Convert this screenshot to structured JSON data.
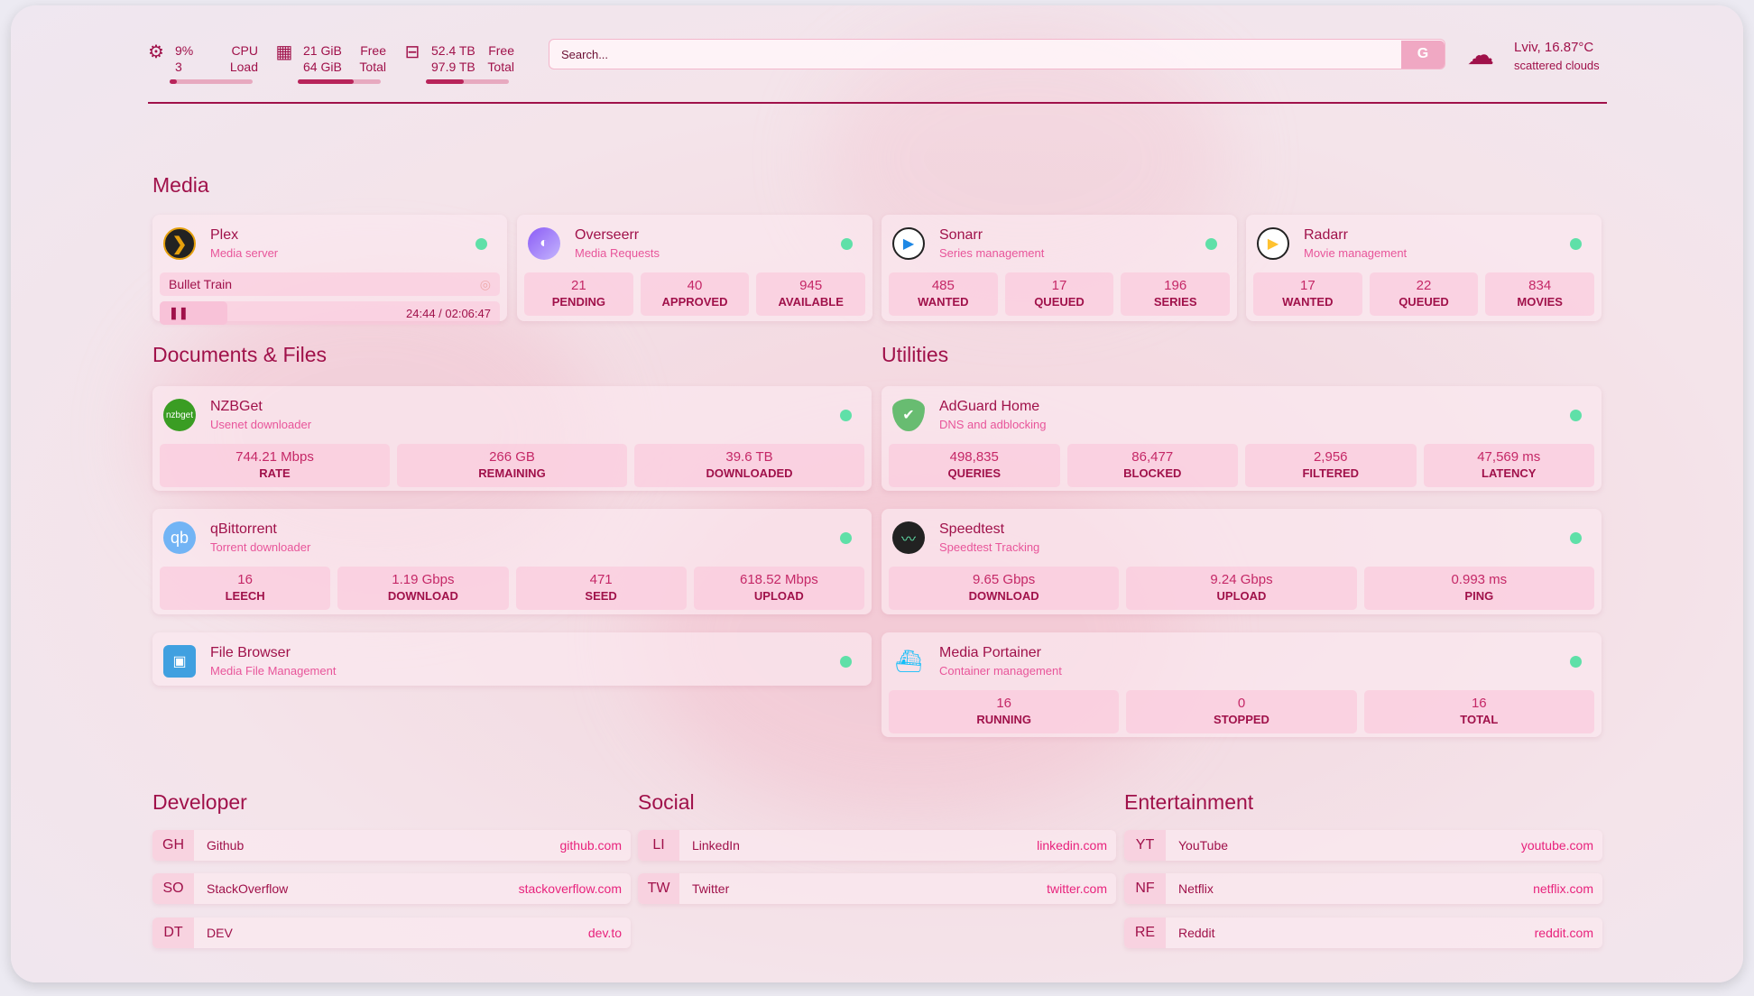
{
  "colors": {
    "accent": "#a0114a",
    "subtitle": "#e8559a",
    "status_ok": "#5fe0a8",
    "link": "#e8227c"
  },
  "system": {
    "cpu": {
      "icon": "cpu-icon",
      "value": "9%",
      "sub": "3",
      "label1": "CPU",
      "label2": "Load",
      "percent": 9
    },
    "memory": {
      "icon": "memory-icon",
      "value": "21 GiB",
      "sub": "64 GiB",
      "label1": "Free",
      "label2": "Total",
      "percent": 67
    },
    "disk": {
      "icon": "hard-drive-icon",
      "value": "52.4 TB",
      "sub": "97.9 TB",
      "label1": "Free",
      "label2": "Total",
      "percent": 46
    }
  },
  "search": {
    "placeholder": "Search...",
    "engine_button": "G"
  },
  "weather": {
    "icon": "cloud-icon",
    "location_temp": "Lviv, 16.87°C",
    "condition": "scattered clouds"
  },
  "sections": {
    "media": "Media",
    "documents": "Documents & Files",
    "utilities": "Utilities",
    "developer": "Developer",
    "social": "Social",
    "entertainment": "Entertainment"
  },
  "plex": {
    "title": "Plex",
    "subtitle": "Media server",
    "now_playing": "Bullet Train",
    "progress": "24:44 / 02:06:47"
  },
  "media_cards": [
    {
      "title": "Overseerr",
      "subtitle": "Media Requests",
      "icon": "overseerr-icon",
      "stats": [
        {
          "v": "21",
          "l": "PENDING"
        },
        {
          "v": "40",
          "l": "APPROVED"
        },
        {
          "v": "945",
          "l": "AVAILABLE"
        }
      ]
    },
    {
      "title": "Sonarr",
      "subtitle": "Series management",
      "icon": "sonarr-icon",
      "stats": [
        {
          "v": "485",
          "l": "WANTED"
        },
        {
          "v": "17",
          "l": "QUEUED"
        },
        {
          "v": "196",
          "l": "SERIES"
        }
      ]
    },
    {
      "title": "Radarr",
      "subtitle": "Movie management",
      "icon": "radarr-icon",
      "stats": [
        {
          "v": "17",
          "l": "WANTED"
        },
        {
          "v": "22",
          "l": "QUEUED"
        },
        {
          "v": "834",
          "l": "MOVIES"
        }
      ]
    }
  ],
  "doc_cards": [
    {
      "title": "NZBGet",
      "subtitle": "Usenet downloader",
      "icon": "nzbget-icon",
      "logo_text": "nzbget",
      "stats": [
        {
          "v": "744.21 Mbps",
          "l": "RATE"
        },
        {
          "v": "266 GB",
          "l": "REMAINING"
        },
        {
          "v": "39.6 TB",
          "l": "DOWNLOADED"
        }
      ]
    },
    {
      "title": "qBittorrent",
      "subtitle": "Torrent downloader",
      "icon": "qbittorrent-icon",
      "logo_text": "qb",
      "stats": [
        {
          "v": "16",
          "l": "LEECH"
        },
        {
          "v": "1.19 Gbps",
          "l": "DOWNLOAD"
        },
        {
          "v": "471",
          "l": "SEED"
        },
        {
          "v": "618.52 Mbps",
          "l": "UPLOAD"
        }
      ]
    },
    {
      "title": "File Browser",
      "subtitle": "Media File Management",
      "icon": "file-browser-icon",
      "stats": []
    }
  ],
  "util_cards": [
    {
      "title": "AdGuard Home",
      "subtitle": "DNS and adblocking",
      "icon": "adguard-shield-icon",
      "stats": [
        {
          "v": "498,835",
          "l": "QUERIES"
        },
        {
          "v": "86,477",
          "l": "BLOCKED"
        },
        {
          "v": "2,956",
          "l": "FILTERED"
        },
        {
          "v": "47,569 ms",
          "l": "LATENCY"
        }
      ]
    },
    {
      "title": "Speedtest",
      "subtitle": "Speedtest Tracking",
      "icon": "speedtest-icon",
      "stats": [
        {
          "v": "9.65 Gbps",
          "l": "DOWNLOAD"
        },
        {
          "v": "9.24 Gbps",
          "l": "UPLOAD"
        },
        {
          "v": "0.993 ms",
          "l": "PING"
        }
      ]
    },
    {
      "title": "Media Portainer",
      "subtitle": "Container management",
      "icon": "portainer-icon",
      "stats": [
        {
          "v": "16",
          "l": "RUNNING"
        },
        {
          "v": "0",
          "l": "STOPPED"
        },
        {
          "v": "16",
          "l": "TOTAL"
        }
      ]
    }
  ],
  "bookmarks": {
    "developer": [
      {
        "abbr": "GH",
        "name": "Github",
        "url": "github.com"
      },
      {
        "abbr": "SO",
        "name": "StackOverflow",
        "url": "stackoverflow.com"
      },
      {
        "abbr": "DT",
        "name": "DEV",
        "url": "dev.to"
      }
    ],
    "social": [
      {
        "abbr": "LI",
        "name": "LinkedIn",
        "url": "linkedin.com"
      },
      {
        "abbr": "TW",
        "name": "Twitter",
        "url": "twitter.com"
      }
    ],
    "entertainment": [
      {
        "abbr": "YT",
        "name": "YouTube",
        "url": "youtube.com"
      },
      {
        "abbr": "NF",
        "name": "Netflix",
        "url": "netflix.com"
      },
      {
        "abbr": "RE",
        "name": "Reddit",
        "url": "reddit.com"
      }
    ]
  }
}
